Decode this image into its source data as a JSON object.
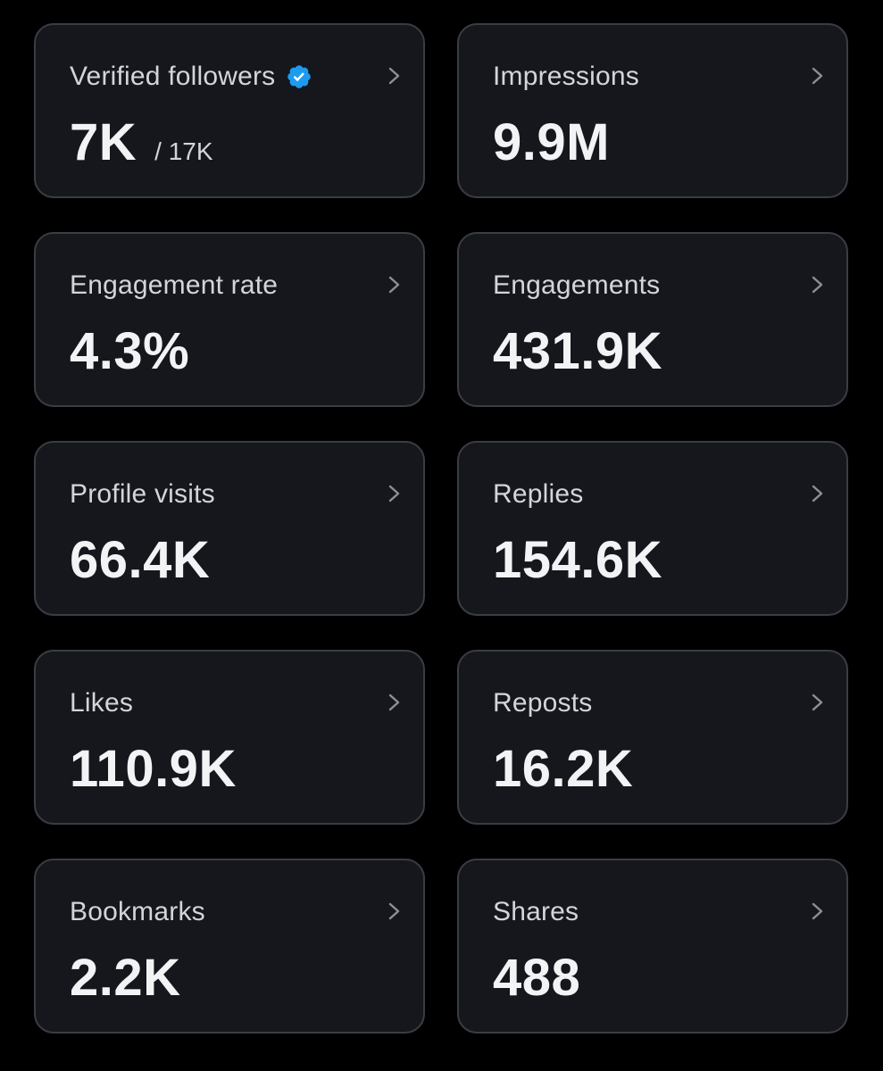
{
  "accent_color": "#1d9bf0",
  "icons": {
    "verified": "verified-badge-icon",
    "chevron": "chevron-right-icon"
  },
  "cards": [
    {
      "id": "verified-followers",
      "label": "Verified followers",
      "value": "7K",
      "secondary": "/ 17K",
      "verified": true
    },
    {
      "id": "impressions",
      "label": "Impressions",
      "value": "9.9M"
    },
    {
      "id": "engagement-rate",
      "label": "Engagement rate",
      "value": "4.3%"
    },
    {
      "id": "engagements",
      "label": "Engagements",
      "value": "431.9K"
    },
    {
      "id": "profile-visits",
      "label": "Profile visits",
      "value": "66.4K"
    },
    {
      "id": "replies",
      "label": "Replies",
      "value": "154.6K"
    },
    {
      "id": "likes",
      "label": "Likes",
      "value": "110.9K"
    },
    {
      "id": "reposts",
      "label": "Reposts",
      "value": "16.2K"
    },
    {
      "id": "bookmarks",
      "label": "Bookmarks",
      "value": "2.2K"
    },
    {
      "id": "shares",
      "label": "Shares",
      "value": "488"
    }
  ]
}
